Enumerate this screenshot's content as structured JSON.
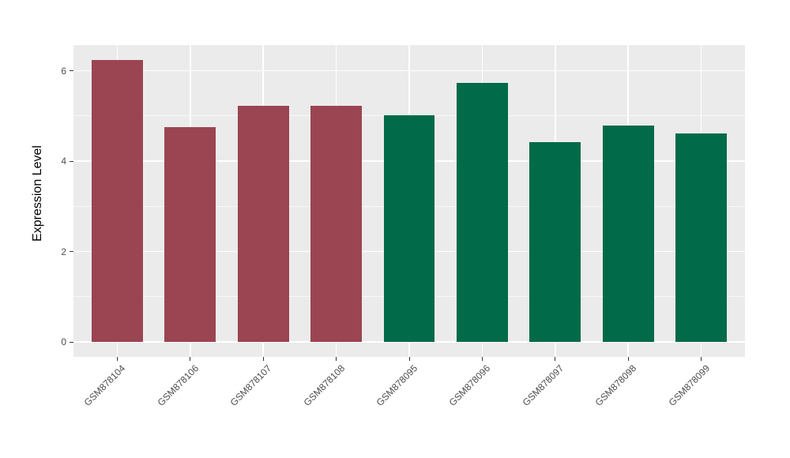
{
  "chart_data": {
    "type": "bar",
    "title": "",
    "xlabel": "",
    "ylabel": "Expression Level",
    "categories": [
      "GSM878104",
      "GSM878106",
      "GSM878107",
      "GSM878108",
      "GSM878095",
      "GSM878096",
      "GSM878097",
      "GSM878098",
      "GSM878099"
    ],
    "values": [
      6.23,
      4.76,
      5.23,
      5.22,
      5.02,
      5.73,
      4.42,
      4.79,
      4.61
    ],
    "bar_colors": [
      "#9A4551",
      "#9A4551",
      "#9A4551",
      "#9A4551",
      "#016A48",
      "#016A48",
      "#016A48",
      "#016A48",
      "#016A48"
    ],
    "groups": [
      {
        "name": "red-group",
        "color": "#9A4551",
        "members": [
          "GSM878104",
          "GSM878106",
          "GSM878107",
          "GSM878108"
        ]
      },
      {
        "name": "green-group",
        "color": "#016A48",
        "members": [
          "GSM878095",
          "GSM878096",
          "GSM878097",
          "GSM878098",
          "GSM878099"
        ]
      }
    ],
    "yticks": [
      0,
      2,
      4,
      6
    ],
    "minor_yticks": [
      1,
      3,
      5
    ],
    "ylim": [
      -0.33,
      6.57
    ],
    "grid": true,
    "legend": "none",
    "bar_width_fraction": 0.7,
    "category_padding": 0.6,
    "colors": {
      "panel_bg": "#EBEBEB",
      "grid_major": "#FFFFFF",
      "grid_minor": "#FFFFFF",
      "axis_text": "#4D4D4D",
      "axis_title": "#000000",
      "tick_mark": "#333333",
      "figure_bg": "#FFFFFF"
    }
  }
}
